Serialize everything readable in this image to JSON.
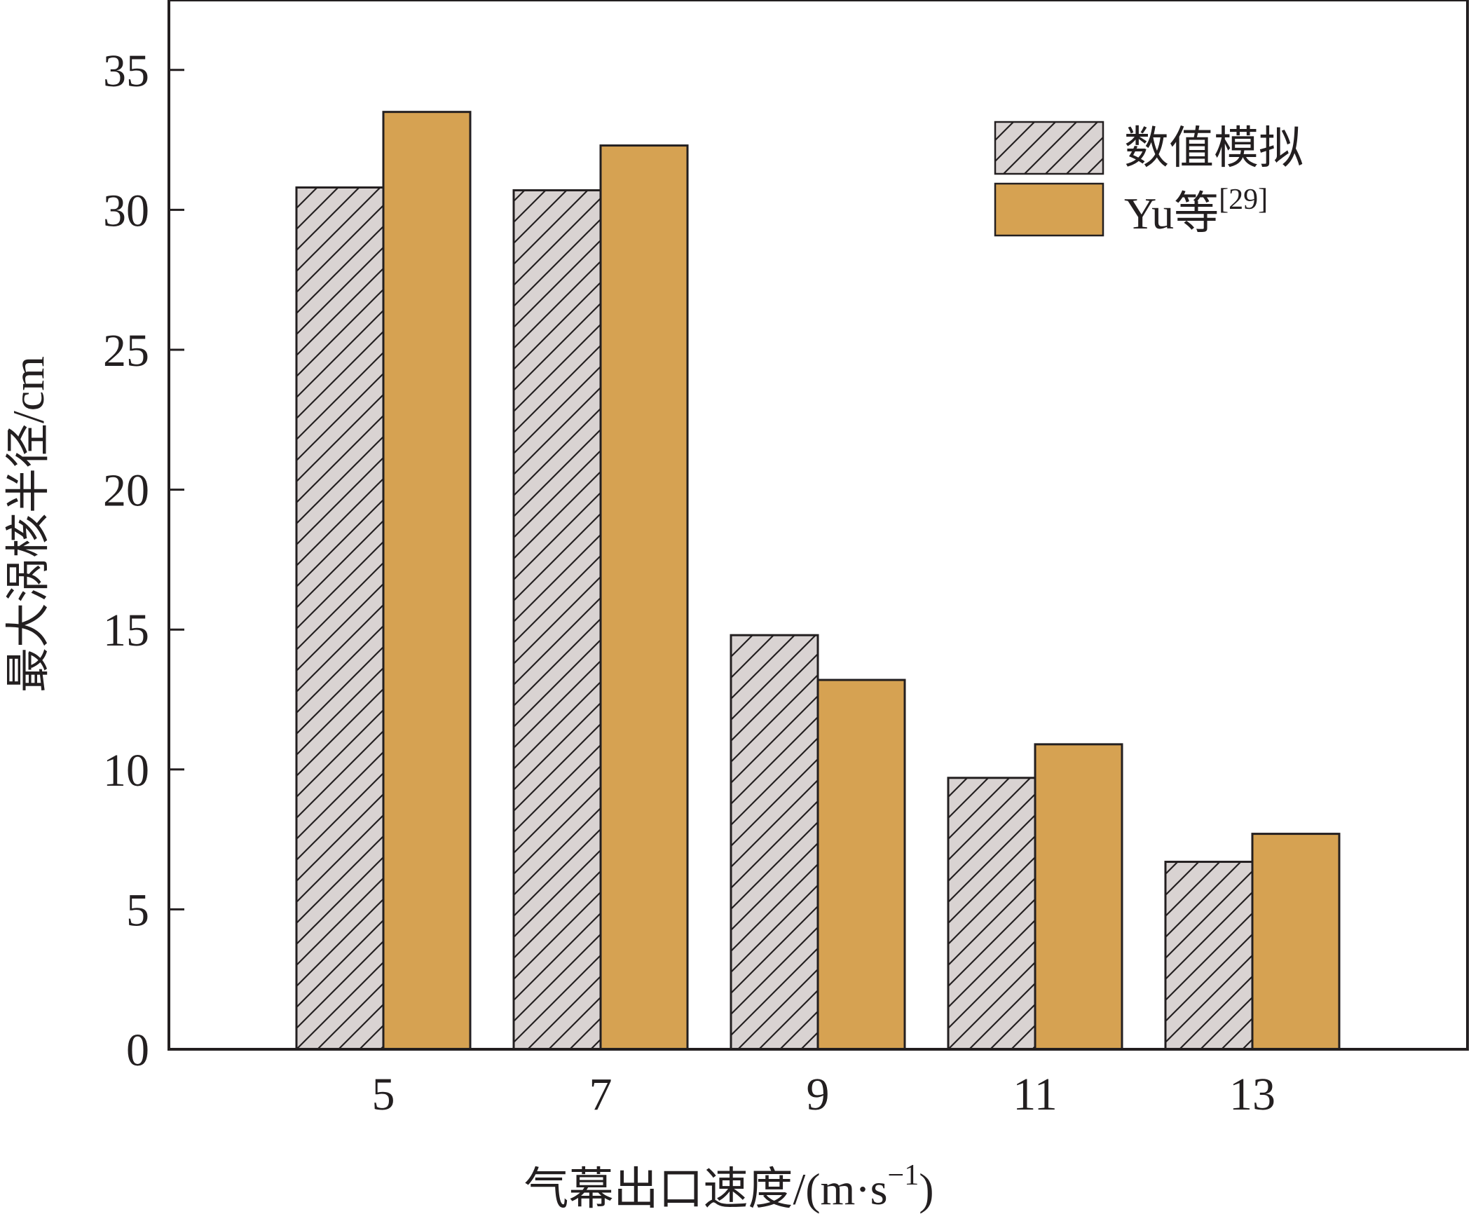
{
  "chart_data": {
    "type": "bar",
    "categories": [
      "5",
      "7",
      "9",
      "11",
      "13"
    ],
    "series": [
      {
        "name": "数值模拟",
        "values": [
          30.8,
          30.7,
          14.8,
          9.7,
          6.7
        ],
        "color": "#d9d3d2",
        "pattern": "hatch"
      },
      {
        "name": "Yu等",
        "name_sup": "[29]",
        "values": [
          33.5,
          32.3,
          13.2,
          10.9,
          7.7
        ],
        "color": "#d6a252",
        "pattern": "solid"
      }
    ],
    "xlabel": "气幕出口速度/(m·s",
    "xlabel_sup": "−1",
    "xlabel_end": ")",
    "ylabel": "最大涡核半径/cm",
    "ylim": [
      0,
      37.5
    ],
    "yticks": [
      0,
      5,
      10,
      15,
      20,
      25,
      30,
      35
    ],
    "grid": false,
    "legend_position": "top-right"
  }
}
